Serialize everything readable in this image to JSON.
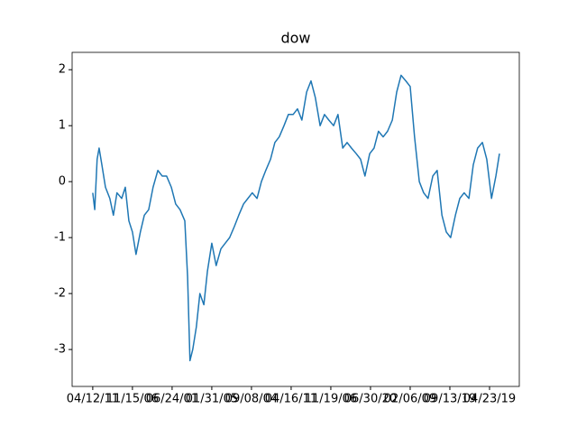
{
  "chart_data": {
    "type": "line",
    "title": "dow",
    "x": [
      0,
      5,
      11,
      16,
      23,
      32,
      43,
      52,
      61,
      73,
      82,
      91,
      100,
      109,
      120,
      130,
      141,
      152,
      164,
      175,
      186,
      198,
      209,
      220,
      232,
      239,
      245,
      252,
      261,
      270,
      280,
      289,
      300,
      311,
      323,
      334,
      345,
      357,
      368,
      380,
      391,
      402,
      414,
      425,
      436,
      448,
      459,
      470,
      482,
      493,
      505,
      516,
      527,
      539,
      550,
      561,
      573,
      584,
      595,
      607,
      618,
      630,
      641,
      652,
      664,
      675,
      686,
      698,
      709,
      720,
      732,
      743,
      755,
      766,
      777,
      789,
      800,
      811,
      823,
      834,
      845,
      857,
      868,
      880,
      891,
      902,
      914,
      925,
      936,
      948,
      959,
      970,
      982,
      993,
      1005,
      1016,
      1025
    ],
    "series": [
      {
        "name": "dow",
        "color": "#1f77b4",
        "values": [
          -0.2,
          -0.5,
          0.4,
          0.6,
          0.3,
          -0.1,
          -0.3,
          -0.6,
          -0.2,
          -0.3,
          -0.1,
          -0.7,
          -0.9,
          -1.3,
          -0.9,
          -0.6,
          -0.5,
          -0.1,
          0.2,
          0.1,
          0.1,
          -0.1,
          -0.4,
          -0.5,
          -0.7,
          -1.7,
          -3.2,
          -3.0,
          -2.6,
          -2.0,
          -2.2,
          -1.6,
          -1.1,
          -1.5,
          -1.2,
          -1.1,
          -1.0,
          -0.8,
          -0.6,
          -0.4,
          -0.3,
          -0.2,
          -0.3,
          0.0,
          0.2,
          0.4,
          0.7,
          0.8,
          1.0,
          1.2,
          1.2,
          1.3,
          1.1,
          1.6,
          1.8,
          1.5,
          1.0,
          1.2,
          1.1,
          1.0,
          1.2,
          0.6,
          0.7,
          0.6,
          0.5,
          0.4,
          0.1,
          0.5,
          0.6,
          0.9,
          0.8,
          0.9,
          1.1,
          1.6,
          1.9,
          1.8,
          1.7,
          0.8,
          0.0,
          -0.2,
          -0.3,
          0.1,
          0.2,
          -0.6,
          -0.9,
          -1.0,
          -0.6,
          -0.3,
          -0.2,
          -0.3,
          0.3,
          0.6,
          0.7,
          0.4,
          -0.3,
          0.1,
          0.5
        ]
      }
    ],
    "xlim": [
      -52,
      1075
    ],
    "xticks": [
      {
        "value": 0,
        "label": "04/12/11"
      },
      {
        "value": 100,
        "label": "11/15/06"
      },
      {
        "value": 200,
        "label": "06/24/01"
      },
      {
        "value": 300,
        "label": "01/31/05"
      },
      {
        "value": 400,
        "label": "09/08/04"
      },
      {
        "value": 500,
        "label": "04/16/11"
      },
      {
        "value": 600,
        "label": "11/19/06"
      },
      {
        "value": 700,
        "label": "06/30/20"
      },
      {
        "value": 800,
        "label": "02/06/09"
      },
      {
        "value": 900,
        "label": "09/13/19"
      },
      {
        "value": 1000,
        "label": "04/23/19"
      }
    ],
    "ylim": [
      -3.66,
      2.31
    ],
    "yticks": [
      -3,
      -2,
      -1,
      0,
      1,
      2
    ]
  }
}
